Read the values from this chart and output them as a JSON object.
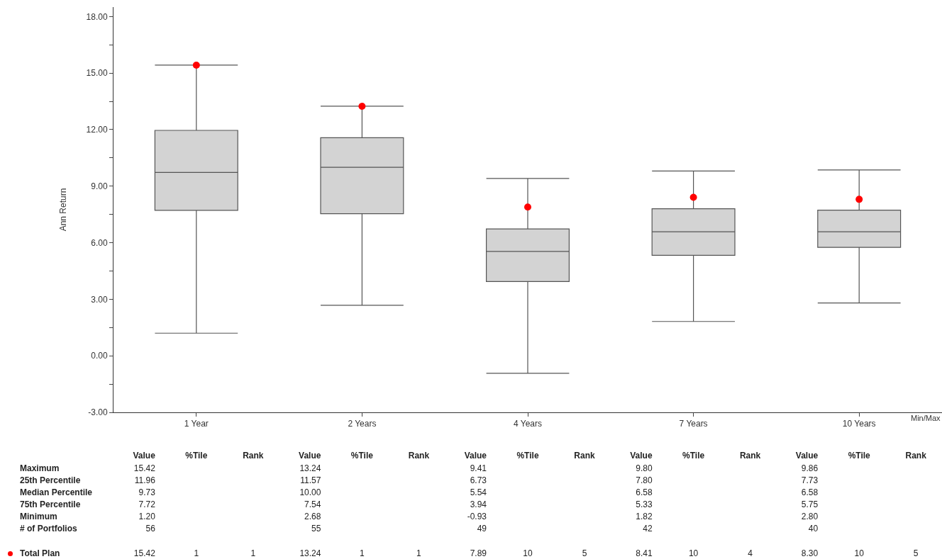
{
  "chart_data": {
    "type": "box",
    "ylabel": "Ann Return",
    "categories": [
      "1 Year",
      "2 Years",
      "4 Years",
      "7 Years",
      "10 Years"
    ],
    "boxes": [
      {
        "low": 1.2,
        "q1": 7.72,
        "median": 9.73,
        "q3": 11.96,
        "high": 15.42
      },
      {
        "low": 2.68,
        "q1": 7.54,
        "median": 10.0,
        "q3": 11.57,
        "high": 13.24
      },
      {
        "low": -0.93,
        "q1": 3.94,
        "median": 5.54,
        "q3": 6.73,
        "high": 9.41
      },
      {
        "low": 1.82,
        "q1": 5.33,
        "median": 6.58,
        "q3": 7.8,
        "high": 9.8
      },
      {
        "low": 2.8,
        "q1": 5.75,
        "median": 6.58,
        "q3": 7.73,
        "high": 9.86
      }
    ],
    "color": "#d3d3d3",
    "series": [
      {
        "name": "Total Plan",
        "type": "scatter",
        "color": "#ff0000",
        "x": [
          "1 Year",
          "2 Years",
          "4 Years",
          "7 Years",
          "10 Years"
        ],
        "values": [
          15.42,
          13.24,
          7.89,
          8.41,
          8.3
        ]
      }
    ],
    "marker": "circle",
    "ylim": [
      -3,
      18.5
    ],
    "yticks": [
      {
        "value": -3,
        "label": "-3.00"
      },
      {
        "value": -1.5,
        "label": null
      },
      {
        "value": 0,
        "label": "0.00"
      },
      {
        "value": 1.5,
        "label": null
      },
      {
        "value": 3,
        "label": "3.00"
      },
      {
        "value": 4.5,
        "label": null
      },
      {
        "value": 6,
        "label": "6.00"
      },
      {
        "value": 7.5,
        "label": null
      },
      {
        "value": 9,
        "label": "9.00"
      },
      {
        "value": 10.5,
        "label": null
      },
      {
        "value": 12,
        "label": "12.00"
      },
      {
        "value": 13.5,
        "label": null
      },
      {
        "value": 15,
        "label": "15.00"
      },
      {
        "value": 16.5,
        "label": null
      },
      {
        "value": 18,
        "label": "18.00"
      }
    ],
    "grid": false,
    "annotations": [
      "Min/Max",
      "Value",
      "%Tile",
      "Rank",
      "Maximum",
      "25th Percentile",
      "Median Percentile",
      "75th Percentile",
      "Minimum",
      "# of Portfolios",
      "15.42",
      "11.96",
      "9.73",
      "7.72",
      "1.20",
      "56",
      "15.42",
      "1",
      "1",
      "13.24",
      "11.57",
      "10.00",
      "7.54",
      "2.68",
      "55",
      "13.24",
      "1",
      "1",
      "9.41",
      "6.73",
      "5.54",
      "3.94",
      "-0.93",
      "49",
      "7.89",
      "10",
      "5",
      "9.80",
      "7.80",
      "6.58",
      "5.33",
      "1.82",
      "42",
      "8.41",
      "10",
      "4",
      "9.86",
      "7.73",
      "6.58",
      "5.75",
      "2.80",
      "40",
      "8.30",
      "10",
      "5"
    ]
  }
}
